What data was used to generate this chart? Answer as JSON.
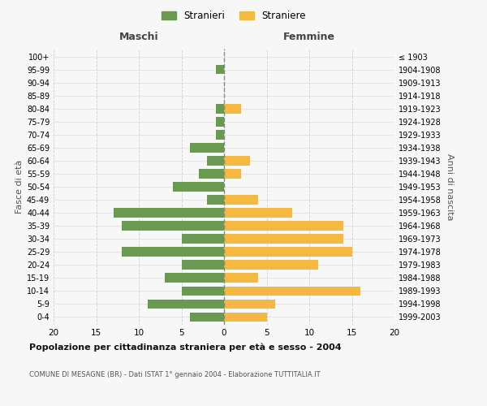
{
  "age_groups": [
    "0-4",
    "5-9",
    "10-14",
    "15-19",
    "20-24",
    "25-29",
    "30-34",
    "35-39",
    "40-44",
    "45-49",
    "50-54",
    "55-59",
    "60-64",
    "65-69",
    "70-74",
    "75-79",
    "80-84",
    "85-89",
    "90-94",
    "95-99",
    "100+"
  ],
  "birth_years": [
    "1999-2003",
    "1994-1998",
    "1989-1993",
    "1984-1988",
    "1979-1983",
    "1974-1978",
    "1969-1973",
    "1964-1968",
    "1959-1963",
    "1954-1958",
    "1949-1953",
    "1944-1948",
    "1939-1943",
    "1934-1938",
    "1929-1933",
    "1924-1928",
    "1919-1923",
    "1914-1918",
    "1909-1913",
    "1904-1908",
    "≤ 1903"
  ],
  "males": [
    4,
    9,
    5,
    7,
    5,
    12,
    5,
    12,
    13,
    2,
    6,
    3,
    2,
    4,
    1,
    1,
    1,
    0,
    0,
    1,
    0
  ],
  "females": [
    5,
    6,
    16,
    4,
    11,
    15,
    14,
    14,
    8,
    4,
    0,
    2,
    3,
    0,
    0,
    0,
    2,
    0,
    0,
    0,
    0
  ],
  "male_color": "#6a9a50",
  "female_color": "#f5b942",
  "background_color": "#f7f7f7",
  "title": "Popolazione per cittadinanza straniera per età e sesso - 2004",
  "subtitle": "COMUNE DI MESAGNE (BR) - Dati ISTAT 1° gennaio 2004 - Elaborazione TUTTITALIA.IT",
  "xlabel_left": "Maschi",
  "xlabel_right": "Femmine",
  "ylabel_left": "Fasce di età",
  "ylabel_right": "Anni di nascita",
  "legend_males": "Stranieri",
  "legend_females": "Straniere",
  "xlim": 20,
  "grid_color": "#d0d0d0",
  "dashed_color": "#888888"
}
